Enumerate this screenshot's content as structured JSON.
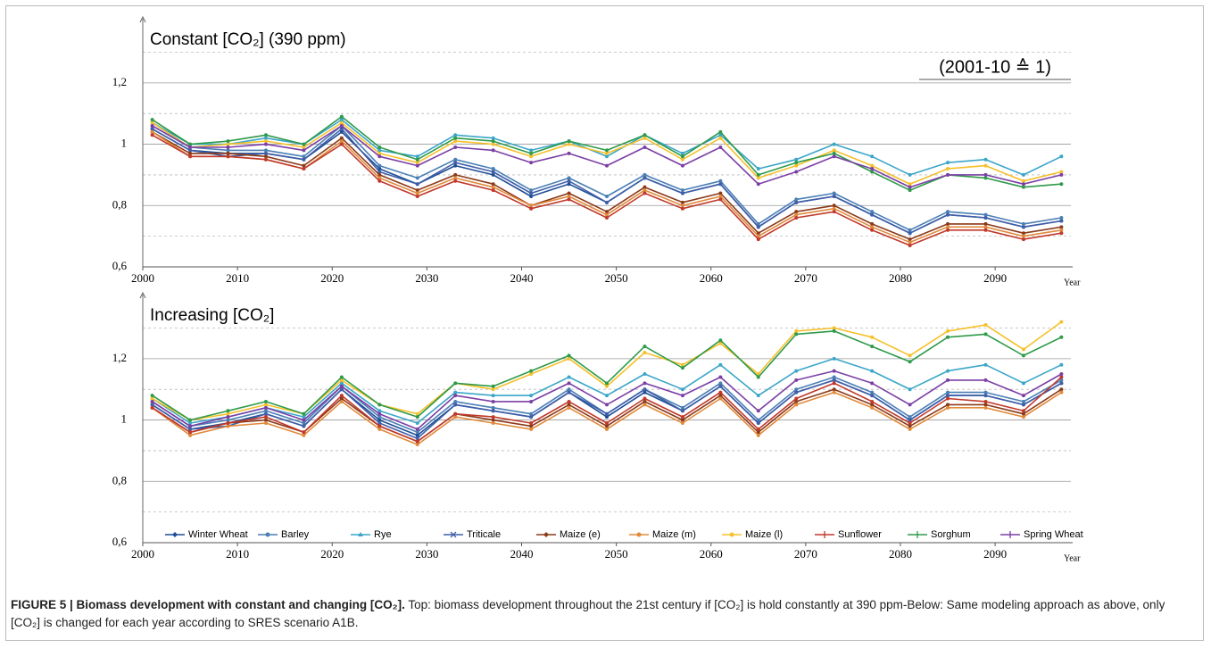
{
  "chart_data": [
    {
      "type": "line",
      "title": "Constant [CO₂] (390 ppm)",
      "annotation": "(2001-10 ≙ 1)",
      "x_label": "Year",
      "x": [
        2001,
        2005,
        2009,
        2013,
        2017,
        2021,
        2025,
        2029,
        2033,
        2037,
        2041,
        2045,
        2049,
        2053,
        2057,
        2061,
        2065,
        2069,
        2073,
        2077,
        2081,
        2085,
        2089,
        2093,
        2097
      ],
      "xlim": [
        2000,
        2098
      ],
      "xticks": [
        2000,
        2010,
        2020,
        2030,
        2040,
        2050,
        2060,
        2070,
        2080,
        2090
      ],
      "ylim": [
        0.6,
        1.38
      ],
      "yticks": [
        {
          "value": 0.6,
          "label": "0,6"
        },
        {
          "value": 0.8,
          "label": "0,8"
        },
        1,
        {
          "value": 1.2,
          "label": "1,2"
        }
      ],
      "minor_grid": [
        0.7,
        0.9,
        1.1,
        1.3
      ],
      "grid": true,
      "series": [
        {
          "color": "#1f4e96",
          "values": [
            1.05,
            0.98,
            0.97,
            0.97,
            0.95,
            1.04,
            0.92,
            0.87,
            0.93,
            0.9,
            0.83,
            0.87,
            0.81,
            0.89,
            0.84,
            0.87,
            0.73,
            0.81,
            0.83,
            0.77,
            0.71,
            0.77,
            0.76,
            0.73,
            0.75
          ]
        },
        {
          "color": "#4a7fb5",
          "values": [
            1.06,
            0.99,
            0.98,
            0.98,
            0.96,
            1.06,
            0.93,
            0.89,
            0.95,
            0.92,
            0.85,
            0.89,
            0.83,
            0.9,
            0.85,
            0.88,
            0.74,
            0.82,
            0.84,
            0.78,
            0.72,
            0.78,
            0.77,
            0.74,
            0.76
          ]
        },
        {
          "color": "#3aa6c8",
          "values": [
            1.07,
            1.0,
            1.0,
            1.02,
            1.0,
            1.08,
            0.98,
            0.96,
            1.03,
            1.02,
            0.98,
            1.01,
            0.96,
            1.03,
            0.97,
            1.03,
            0.92,
            0.95,
            1.0,
            0.96,
            0.9,
            0.94,
            0.95,
            0.9,
            0.96
          ]
        },
        {
          "color": "#3f5fa8",
          "values": [
            1.05,
            0.98,
            0.96,
            0.97,
            0.95,
            1.05,
            0.91,
            0.87,
            0.94,
            0.91,
            0.84,
            0.88,
            0.81,
            0.89,
            0.84,
            0.87,
            0.73,
            0.81,
            0.83,
            0.77,
            0.71,
            0.77,
            0.76,
            0.73,
            0.75
          ]
        },
        {
          "color": "#8b3a1a",
          "values": [
            1.04,
            0.97,
            0.97,
            0.96,
            0.93,
            1.02,
            0.9,
            0.85,
            0.9,
            0.87,
            0.8,
            0.84,
            0.78,
            0.86,
            0.81,
            0.84,
            0.71,
            0.78,
            0.8,
            0.74,
            0.69,
            0.74,
            0.74,
            0.71,
            0.73
          ]
        },
        {
          "color": "#e08a3a",
          "values": [
            1.04,
            0.96,
            0.96,
            0.95,
            0.92,
            1.01,
            0.89,
            0.84,
            0.89,
            0.86,
            0.8,
            0.83,
            0.77,
            0.85,
            0.8,
            0.83,
            0.7,
            0.77,
            0.79,
            0.73,
            0.68,
            0.73,
            0.73,
            0.7,
            0.72
          ]
        },
        {
          "color": "#f5c02a",
          "values": [
            1.07,
            0.99,
            1.0,
            1.01,
            0.99,
            1.07,
            0.97,
            0.94,
            1.01,
            1.0,
            0.96,
            1.0,
            0.97,
            1.02,
            0.95,
            1.02,
            0.89,
            0.93,
            0.98,
            0.93,
            0.87,
            0.92,
            0.93,
            0.88,
            0.91
          ]
        },
        {
          "color": "#c0392b",
          "values": [
            1.03,
            0.96,
            0.96,
            0.95,
            0.92,
            1.0,
            0.88,
            0.83,
            0.88,
            0.85,
            0.79,
            0.82,
            0.76,
            0.84,
            0.79,
            0.82,
            0.69,
            0.76,
            0.78,
            0.72,
            0.67,
            0.72,
            0.72,
            0.69,
            0.71
          ]
        },
        {
          "color": "#2e9a4a",
          "values": [
            1.08,
            1.0,
            1.01,
            1.03,
            1.0,
            1.09,
            0.99,
            0.95,
            1.02,
            1.01,
            0.97,
            1.01,
            0.98,
            1.03,
            0.96,
            1.04,
            0.9,
            0.94,
            0.97,
            0.91,
            0.85,
            0.9,
            0.89,
            0.86,
            0.87
          ]
        },
        {
          "color": "#7b3fa5",
          "values": [
            1.06,
            0.99,
            0.99,
            1.0,
            0.98,
            1.06,
            0.96,
            0.93,
            0.99,
            0.98,
            0.94,
            0.97,
            0.93,
            0.99,
            0.93,
            0.99,
            0.87,
            0.91,
            0.96,
            0.92,
            0.86,
            0.9,
            0.9,
            0.87,
            0.9
          ]
        }
      ]
    },
    {
      "type": "line",
      "title": "Increasing [CO₂]",
      "x_label": "Year",
      "x": [
        2001,
        2005,
        2009,
        2013,
        2017,
        2021,
        2025,
        2029,
        2033,
        2037,
        2041,
        2045,
        2049,
        2053,
        2057,
        2061,
        2065,
        2069,
        2073,
        2077,
        2081,
        2085,
        2089,
        2093,
        2097
      ],
      "xlim": [
        2000,
        2098
      ],
      "xticks": [
        2000,
        2010,
        2020,
        2030,
        2040,
        2050,
        2060,
        2070,
        2080,
        2090
      ],
      "ylim": [
        0.6,
        1.38
      ],
      "yticks": [
        {
          "value": 0.6,
          "label": "0,6"
        },
        {
          "value": 0.8,
          "label": "0,8"
        },
        1,
        {
          "value": 1.2,
          "label": "1,2"
        }
      ],
      "minor_grid": [
        0.7,
        0.9,
        1.1,
        1.3
      ],
      "grid": true,
      "series": [
        {
          "name": "Winter Wheat",
          "color": "#1f4e96",
          "values": [
            1.05,
            0.97,
            0.99,
            1.02,
            0.98,
            1.1,
            1.0,
            0.95,
            1.05,
            1.03,
            1.01,
            1.09,
            1.01,
            1.09,
            1.03,
            1.11,
            0.99,
            1.09,
            1.13,
            1.08,
            1.0,
            1.08,
            1.08,
            1.05,
            1.12
          ]
        },
        {
          "name": "Barley",
          "color": "#4a7fb5",
          "values": [
            1.06,
            0.98,
            1.0,
            1.03,
            0.99,
            1.11,
            1.01,
            0.96,
            1.06,
            1.04,
            1.02,
            1.1,
            1.02,
            1.1,
            1.04,
            1.12,
            1.0,
            1.1,
            1.14,
            1.09,
            1.01,
            1.09,
            1.09,
            1.06,
            1.13
          ]
        },
        {
          "name": "Rye",
          "color": "#3aa6c8",
          "values": [
            1.07,
            0.99,
            1.01,
            1.04,
            1.01,
            1.12,
            1.03,
            0.99,
            1.09,
            1.08,
            1.08,
            1.14,
            1.08,
            1.15,
            1.1,
            1.18,
            1.08,
            1.16,
            1.2,
            1.16,
            1.1,
            1.16,
            1.18,
            1.12,
            1.18
          ]
        },
        {
          "name": "Triticale",
          "color": "#3f5fa8",
          "values": [
            1.05,
            0.97,
            0.98,
            1.02,
            0.98,
            1.1,
            0.99,
            0.94,
            1.05,
            1.03,
            1.01,
            1.09,
            1.02,
            1.1,
            1.03,
            1.11,
            0.99,
            1.09,
            1.13,
            1.08,
            1.0,
            1.08,
            1.08,
            1.05,
            1.12
          ]
        },
        {
          "name": "Maize (e)",
          "color": "#8b3a1a",
          "values": [
            1.04,
            0.96,
            0.99,
            1.0,
            0.96,
            1.07,
            0.98,
            0.93,
            1.02,
            1.0,
            0.98,
            1.05,
            0.98,
            1.06,
            1.0,
            1.08,
            0.96,
            1.06,
            1.1,
            1.05,
            0.98,
            1.05,
            1.05,
            1.02,
            1.1
          ]
        },
        {
          "name": "Maize (m)",
          "color": "#e08a3a",
          "values": [
            1.04,
            0.95,
            0.98,
            0.99,
            0.95,
            1.06,
            0.97,
            0.92,
            1.01,
            0.99,
            0.97,
            1.04,
            0.97,
            1.05,
            0.99,
            1.07,
            0.95,
            1.05,
            1.09,
            1.04,
            0.97,
            1.04,
            1.04,
            1.01,
            1.09
          ]
        },
        {
          "name": "Maize (l)",
          "color": "#f5c02a",
          "values": [
            1.07,
            1.0,
            1.02,
            1.05,
            1.02,
            1.13,
            1.05,
            1.02,
            1.12,
            1.1,
            1.15,
            1.2,
            1.11,
            1.22,
            1.18,
            1.25,
            1.15,
            1.29,
            1.3,
            1.27,
            1.21,
            1.29,
            1.31,
            1.23,
            1.32
          ]
        },
        {
          "name": "Sunflower",
          "color": "#c0392b",
          "values": [
            1.04,
            0.96,
            0.99,
            1.01,
            0.96,
            1.08,
            0.98,
            0.93,
            1.02,
            1.01,
            0.99,
            1.06,
            0.99,
            1.07,
            1.01,
            1.09,
            0.97,
            1.07,
            1.12,
            1.06,
            0.99,
            1.07,
            1.06,
            1.03,
            1.14
          ]
        },
        {
          "name": "Sorghum",
          "color": "#2e9a4a",
          "values": [
            1.08,
            1.0,
            1.03,
            1.06,
            1.02,
            1.14,
            1.05,
            1.01,
            1.12,
            1.11,
            1.16,
            1.21,
            1.12,
            1.24,
            1.17,
            1.26,
            1.14,
            1.28,
            1.29,
            1.24,
            1.19,
            1.27,
            1.28,
            1.21,
            1.27
          ]
        },
        {
          "name": "Spring Wheat",
          "color": "#7b3fa5",
          "values": [
            1.06,
            0.98,
            1.01,
            1.04,
            1.0,
            1.11,
            1.02,
            0.97,
            1.08,
            1.06,
            1.06,
            1.12,
            1.05,
            1.12,
            1.08,
            1.14,
            1.03,
            1.13,
            1.16,
            1.12,
            1.05,
            1.13,
            1.13,
            1.08,
            1.15
          ]
        }
      ]
    }
  ],
  "caption": {
    "label": "FIGURE 5 | Biomass development with constant and changing [CO₂].",
    "text": "Top: biomass development throughout the 21st century if [CO₂] is hold constantly at 390 ppm-Below: Same modeling approach as above, only [CO₂] is changed for each year according to SRES scenario A1B."
  }
}
